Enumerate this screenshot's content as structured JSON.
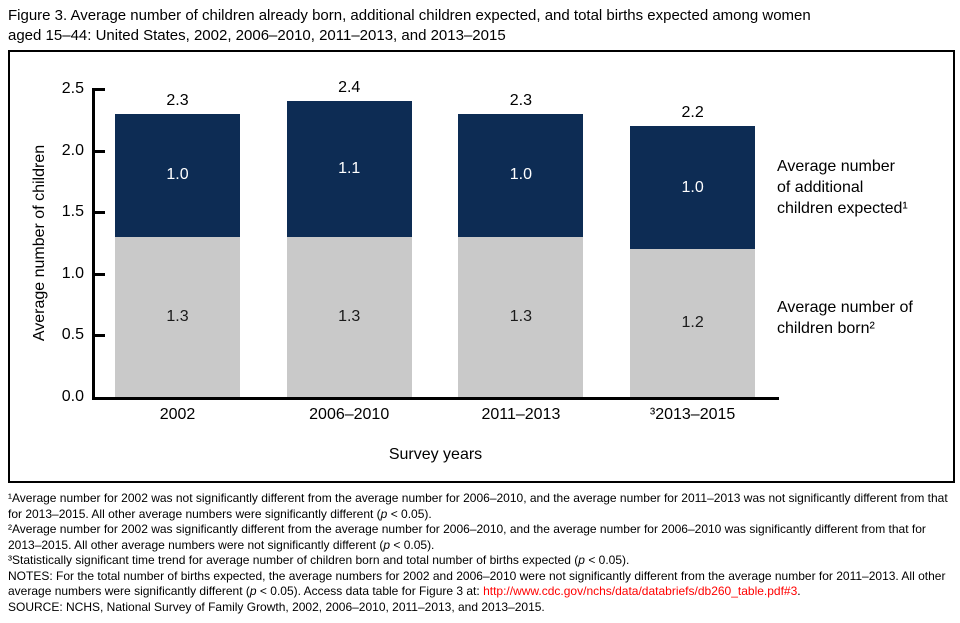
{
  "figure": {
    "title": "Figure 3. Average number of children already born, additional children expected, and total births expected among women\naged 15–44: United States, 2002, 2006–2010, 2011–2013, and 2013–2015"
  },
  "chart_data": {
    "type": "bar",
    "stacked": true,
    "title": "",
    "xlabel": "Survey years",
    "ylabel": "Average number of children",
    "ylim": [
      0,
      2.5
    ],
    "yticks": [
      "0.0",
      "0.5",
      "1.0",
      "1.5",
      "2.0",
      "2.5"
    ],
    "grid": false,
    "categories": [
      "2002",
      "2006–2010",
      "2011–2013",
      "³2013–2015"
    ],
    "series": [
      {
        "name": "Average number of children born²",
        "values": [
          1.3,
          1.3,
          1.3,
          1.2
        ],
        "color": "#c9c9c9",
        "label_color": "#1a1a1a"
      },
      {
        "name": "Average number of additional children expected¹",
        "values": [
          1.0,
          1.1,
          1.0,
          1.0
        ],
        "color": "#0d2c54",
        "label_color": "#ffffff"
      }
    ],
    "totals": [
      "2.3",
      "2.4",
      "2.3",
      "2.2"
    ],
    "legend_position": "right-of-bars"
  },
  "annotations": {
    "expected_label": "Average number\nof additional\nchildren expected¹",
    "born_label": "Average number of\nchildren born²"
  },
  "colors": {
    "bar_expected": "#0d2c54",
    "bar_born": "#c9c9c9",
    "axis": "#000000",
    "link": "#ff0000"
  },
  "footnotes": [
    {
      "name": "footnote-1",
      "segments": [
        {
          "t": "¹Average number for 2002 was not significantly different from the average number for 2006–2010, and the average number for 2011–2013 was not significantly different from that for 2013–2015. All other average numbers were significantly different ("
        },
        {
          "t": "p",
          "s": "i"
        },
        {
          "t": " < 0.05)."
        }
      ]
    },
    {
      "name": "footnote-2",
      "segments": [
        {
          "t": "²Average number for 2002 was significantly different from the average number for 2006–2010, and the average number for 2006–2010 was significantly different from that for 2013–2015. All other average numbers were not significantly different ("
        },
        {
          "t": "p",
          "s": "i"
        },
        {
          "t": " < 0.05)."
        }
      ]
    },
    {
      "name": "footnote-3",
      "segments": [
        {
          "t": "³Statistically significant time trend for average number of children born and total number of births expected ("
        },
        {
          "t": "p",
          "s": "i"
        },
        {
          "t": " < 0.05)."
        }
      ]
    },
    {
      "name": "notes",
      "segments": [
        {
          "t": "NOTES: For the total number of births expected, the average numbers for 2002 and 2006–2010 were not significantly different from the average number for 2011–2013. All other average numbers were significantly different ("
        },
        {
          "t": "p",
          "s": "i"
        },
        {
          "t": " < 0.05). Access data table for Figure 3 at: "
        },
        {
          "t": "http://www.cdc.gov/nchs/data/databriefs/db260_table.pdf#3",
          "s": "link"
        },
        {
          "t": "."
        }
      ]
    },
    {
      "name": "source",
      "segments": [
        {
          "t": "SOURCE: NCHS, National Survey of Family Growth, 2002, 2006–2010, 2011–2013, and 2013–2015."
        }
      ]
    }
  ]
}
